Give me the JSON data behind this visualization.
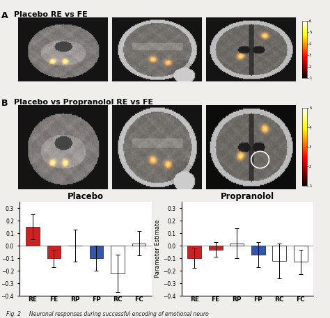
{
  "placebo_values": [
    0.15,
    -0.1,
    0.0,
    -0.1,
    -0.22,
    0.02
  ],
  "placebo_errors": [
    0.1,
    0.07,
    0.13,
    0.1,
    0.15,
    0.1
  ],
  "propranolol_values": [
    -0.1,
    -0.03,
    0.02,
    -0.07,
    -0.12,
    -0.13
  ],
  "propranolol_errors": [
    0.08,
    0.06,
    0.12,
    0.1,
    0.14,
    0.1
  ],
  "categories": [
    "RE",
    "FE",
    "RP",
    "FP",
    "RC",
    "FC"
  ],
  "bar_colors_emotional": "#cc2222",
  "bar_colors_neutral_fp": "#3355aa",
  "bar_colors_neutral": "#e8e8e8",
  "placebo_title": "Placebo",
  "propranolol_title": "Propranolol",
  "ylabel": "Parameter Estimate",
  "ylim": [
    -0.4,
    0.35
  ],
  "yticks": [
    -0.4,
    -0.3,
    -0.2,
    -0.1,
    0.0,
    0.1,
    0.2,
    0.3
  ],
  "panel_A_label": "A",
  "panel_A_text": "Placebo RE vs FE",
  "panel_B_label": "B",
  "panel_B_text": "Placebo vs Propranolol RE vs FE",
  "fig_caption": "Fig. 2     Neuronal responses during successful encoding of emotional neuro",
  "background_color": "#f0eeeb",
  "colorbar_ticks": [
    1,
    2,
    3,
    4,
    5,
    6
  ],
  "colorbar_ticks_B": [
    1,
    2,
    3,
    4,
    5
  ]
}
